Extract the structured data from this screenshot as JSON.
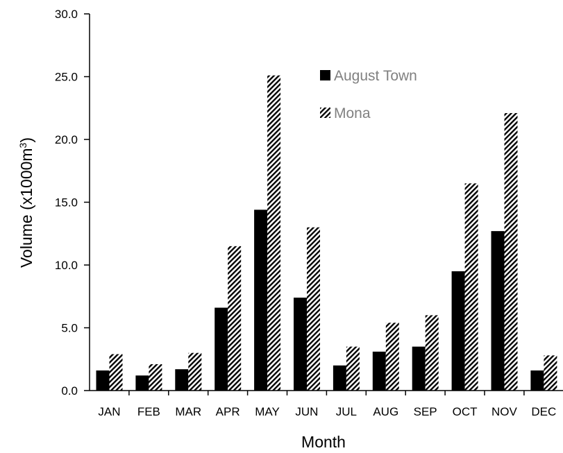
{
  "chart_data": {
    "type": "bar",
    "categories": [
      "JAN",
      "FEB",
      "MAR",
      "APR",
      "MAY",
      "JUN",
      "JUL",
      "AUG",
      "SEP",
      "OCT",
      "NOV",
      "DEC"
    ],
    "series": [
      {
        "name": "August Town",
        "fill": "solid",
        "color": "#000000",
        "values": [
          1.6,
          1.2,
          1.7,
          6.6,
          14.4,
          7.4,
          2.0,
          3.1,
          3.5,
          9.5,
          12.7,
          1.6
        ]
      },
      {
        "name": "Mona",
        "fill": "hatched",
        "color": "#000000",
        "values": [
          2.9,
          2.1,
          3.0,
          11.5,
          25.1,
          13.0,
          3.5,
          5.4,
          6.0,
          16.5,
          22.1,
          2.8
        ]
      }
    ],
    "y_ticks": [
      "0.0",
      "5.0",
      "10.0",
      "15.0",
      "20.0",
      "25.0",
      "30.0"
    ],
    "ylim": [
      0,
      30
    ],
    "xlabel": "Month",
    "ylabel_main": "Volume (x1000m",
    "ylabel_sup": "3",
    "ylabel_close": ")",
    "legend_position": "top-center",
    "legend_text_color": "#808080",
    "grid": false
  }
}
